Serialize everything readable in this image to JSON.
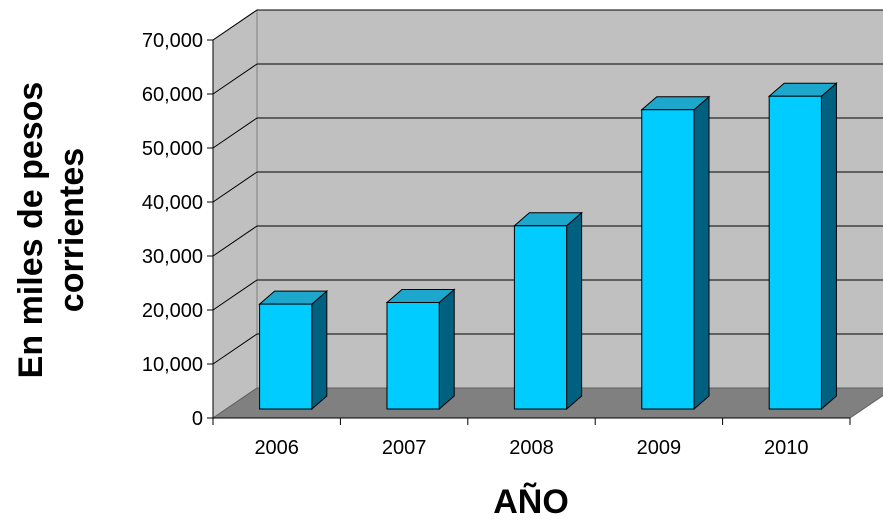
{
  "chart_data": {
    "type": "bar",
    "categories": [
      "2006",
      "2007",
      "2008",
      "2009",
      "2010"
    ],
    "values": [
      23500,
      23800,
      38000,
      59500,
      62000
    ],
    "xlabel": "AÑO",
    "ylabel_lines": [
      "En miles de pesos",
      "corrientes"
    ],
    "ylim": [
      0,
      70000
    ],
    "ytick_values": [
      0,
      10000,
      20000,
      30000,
      40000,
      50000,
      60000,
      70000
    ],
    "ytick_labels": [
      "0",
      "10,000",
      "20,000",
      "30,000",
      "40,000",
      "50,000",
      "60,000",
      "70,000"
    ],
    "grid": true,
    "legend": "none",
    "three_d": true,
    "colors": {
      "bar_front": "#00ccff",
      "bar_top": "#1ea7cc",
      "bar_side": "#006080",
      "wall": "#c0c0c0",
      "floor": "#808080"
    }
  }
}
